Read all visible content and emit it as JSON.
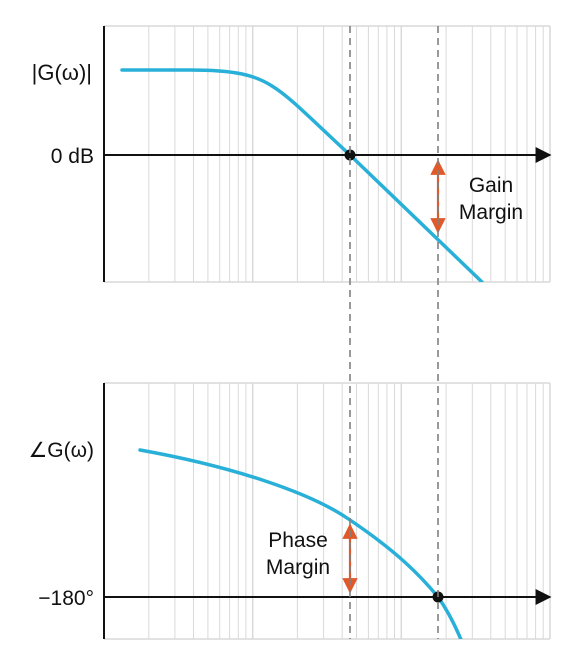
{
  "magnitude_plot": {
    "y_label": "|G(ω)|",
    "zero_db_label": "0 dB",
    "margin_label_line1": "Gain",
    "margin_label_line2": "Margin"
  },
  "phase_plot": {
    "y_label": "∠G(ω)",
    "minus180_label": "−180°",
    "margin_label_line1": "Phase",
    "margin_label_line2": "Margin"
  },
  "colors": {
    "curve": "#29b0d8",
    "margin_arrow": "#e0592a",
    "grid": "#d9d9d9",
    "axis": "#111111",
    "guide": "#808080"
  }
}
